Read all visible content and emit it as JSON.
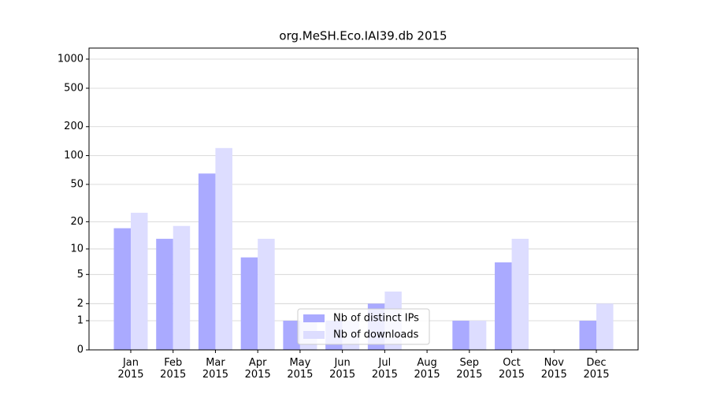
{
  "chart_data": {
    "type": "bar",
    "title": "org.MeSH.Eco.IAI39.db 2015",
    "categories": [
      "Jan 2015",
      "Feb 2015",
      "Mar 2015",
      "Apr 2015",
      "May 2015",
      "Jun 2015",
      "Jul 2015",
      "Aug 2015",
      "Sep 2015",
      "Oct 2015",
      "Nov 2015",
      "Dec 2015"
    ],
    "series": [
      {
        "name": "Nb of distinct IPs",
        "color": "#aaaaff",
        "values": [
          17,
          13,
          65,
          8,
          1,
          1,
          2,
          0,
          1,
          7,
          0,
          1
        ]
      },
      {
        "name": "Nb of downloads",
        "color": "#ddddff",
        "values": [
          25,
          18,
          120,
          13,
          1,
          1,
          3,
          0,
          1,
          13,
          0,
          2
        ]
      }
    ],
    "yscale": "log1p",
    "ylim": [
      0,
      1300
    ],
    "yticks": [
      0,
      1,
      2,
      5,
      10,
      20,
      50,
      100,
      200,
      500,
      1000
    ],
    "grid": true,
    "legend": "lower center"
  }
}
